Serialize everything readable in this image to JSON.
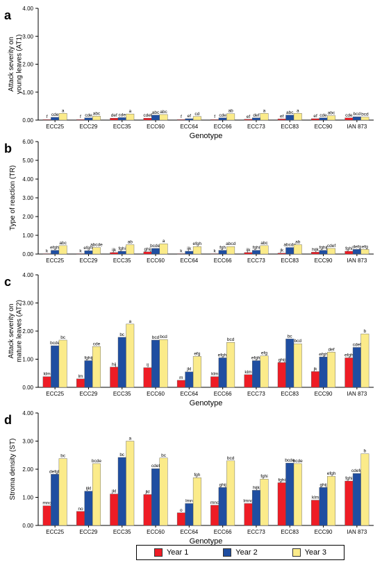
{
  "colors": {
    "year1": "#ee1c25",
    "year2": "#1f4ea1",
    "year3": "#fbeb8a"
  },
  "legend": {
    "items": [
      "Year 1",
      "Year 2",
      "Year 3"
    ]
  },
  "chart_data": [
    {
      "type": "bar",
      "panel_letter": "a",
      "ylabel": "Attack severity  on young leaves (AT1)",
      "xlabel": "Genotype",
      "ylim": [
        0,
        4
      ],
      "yticks": [
        "0.00",
        "1.00",
        "2.00",
        "3.00",
        "4.00"
      ],
      "categories": [
        "ECC25",
        "ECC29",
        "ECC35",
        "ECC60",
        "ECC64",
        "ECC66",
        "ECC73",
        "ECC83",
        "ECC90",
        "IAN 873"
      ],
      "series": [
        {
          "name": "Year 1",
          "values": [
            0.02,
            0.02,
            0.07,
            0.07,
            0.02,
            0.02,
            0.03,
            0.04,
            0.05,
            0.08
          ],
          "labels": [
            "f",
            "f",
            "def",
            "cdef",
            "f",
            "f",
            "ef",
            "ef",
            "ef",
            "cde"
          ]
        },
        {
          "name": "Year 2",
          "values": [
            0.1,
            0.08,
            0.09,
            0.18,
            0.05,
            0.08,
            0.08,
            0.18,
            0.08,
            0.12
          ],
          "labels": [
            "cde",
            "cde",
            "cde",
            "abc",
            "ef",
            "cde",
            "def",
            "abc",
            "cde",
            "bcd"
          ]
        },
        {
          "name": "Year 3",
          "values": [
            0.24,
            0.14,
            0.22,
            0.2,
            0.13,
            0.23,
            0.24,
            0.24,
            0.16,
            0.11
          ],
          "labels": [
            "a",
            "abc",
            "a",
            "abc",
            "cd",
            "ab",
            "a",
            "a",
            "abc",
            "bcd"
          ]
        }
      ]
    },
    {
      "type": "bar",
      "panel_letter": "b",
      "ylabel": "Type of reaction (TR)",
      "xlabel": "",
      "ylim": [
        0,
        6
      ],
      "yticks": [
        "0.00",
        "1.00",
        "2.00",
        "3.00",
        "4.00",
        "5.00",
        "6.00"
      ],
      "categories": [
        "ECC25",
        "ECC29",
        "ECC35",
        "ECC60",
        "ECC64",
        "ECC66",
        "ECC73",
        "ECC83",
        "ECC90",
        "IAN 873"
      ],
      "series": [
        {
          "name": "Year 1",
          "values": [
            0.02,
            0.02,
            0.08,
            0.12,
            0.02,
            0.02,
            0.08,
            0.05,
            0.1,
            0.15
          ],
          "labels": [
            "k",
            "k",
            "ijk",
            "ghij",
            "k",
            "k",
            "ijk",
            "jk",
            "hijk",
            "fghi"
          ]
        },
        {
          "name": "Year 2",
          "values": [
            0.2,
            0.18,
            0.15,
            0.3,
            0.15,
            0.2,
            0.2,
            0.35,
            0.2,
            0.25
          ],
          "labels": [
            "efghi",
            "efghi",
            "fghi",
            "bcdef",
            "ijk",
            "fgh",
            "fghi",
            "abcde",
            "fghij",
            "defg"
          ]
        },
        {
          "name": "Year 3",
          "values": [
            0.45,
            0.35,
            0.5,
            0.55,
            0.4,
            0.4,
            0.45,
            0.5,
            0.3,
            0.25
          ],
          "labels": [
            "abc",
            "abcde",
            "ab",
            "a",
            "efgh",
            "abcd",
            "abc",
            "ab",
            "cdef",
            "efg"
          ]
        }
      ]
    },
    {
      "type": "bar",
      "panel_letter": "c",
      "ylabel": "Attack severity on  mature leaves (AT2)",
      "xlabel": "Genotype",
      "ylim": [
        0,
        4
      ],
      "yticks": [
        "0.00",
        "1.00",
        "2.00",
        "3.00",
        "4.00"
      ],
      "categories": [
        "ECC25",
        "ECC29",
        "ECC35",
        "ECC60",
        "ECC64",
        "ECC66",
        "ECC73",
        "ECC83",
        "ECC90",
        "IAN 873"
      ],
      "series": [
        {
          "name": "Year 1",
          "values": [
            0.38,
            0.3,
            0.72,
            0.7,
            0.25,
            0.38,
            0.45,
            0.88,
            0.56,
            1.05
          ],
          "labels": [
            "klm",
            "lm",
            "hij",
            "ij",
            "m",
            "klm",
            "klm",
            "ghij",
            "jk",
            "efgh"
          ]
        },
        {
          "name": "Year 2",
          "values": [
            1.48,
            0.95,
            1.78,
            1.68,
            0.55,
            1.05,
            0.95,
            1.72,
            1.08,
            1.42
          ],
          "labels": [
            "bcde",
            "fghij",
            "bc",
            "bcd",
            "jkl",
            "efghi",
            "efghi",
            "bc",
            "efgh",
            "cdef"
          ]
        },
        {
          "name": "Year 3",
          "values": [
            1.68,
            1.45,
            2.25,
            1.7,
            1.1,
            1.6,
            1.12,
            1.55,
            1.25,
            1.9
          ],
          "labels": [
            "bc",
            "cde",
            "a",
            "bcd",
            "efg",
            "bcd",
            "efg",
            "bcd",
            "def",
            "b"
          ]
        }
      ]
    },
    {
      "type": "bar",
      "panel_letter": "d",
      "ylabel": "Stroma density (ST)",
      "xlabel": "Genotype",
      "ylim": [
        0,
        4
      ],
      "yticks": [
        "0.00",
        "1.00",
        "2.00",
        "3.00",
        "4.00"
      ],
      "categories": [
        "ECC25",
        "ECC29",
        "ECC35",
        "ECC60",
        "ECC64",
        "ECC66",
        "ECC73",
        "ECC83",
        "ECC90",
        "IAN 873"
      ],
      "series": [
        {
          "name": "Year 1",
          "values": [
            0.7,
            0.5,
            1.12,
            1.1,
            0.45,
            0.72,
            0.78,
            1.52,
            0.9,
            1.58
          ],
          "labels": [
            "mno",
            "no",
            "jkl",
            "jkl",
            "o",
            "mno",
            "lmno",
            "fghi",
            "klm",
            "fghi"
          ]
        },
        {
          "name": "Year 2",
          "values": [
            1.82,
            1.22,
            2.42,
            2.02,
            0.78,
            1.35,
            1.25,
            2.22,
            1.35,
            1.85
          ],
          "labels": [
            "defgh",
            "ijkl",
            "bc",
            "cdef",
            "lmn",
            "ghij",
            "hijk",
            "bcde",
            "ghij",
            "cdefg"
          ]
        },
        {
          "name": "Year 3",
          "values": [
            2.38,
            2.2,
            3.0,
            2.4,
            1.7,
            2.3,
            1.65,
            2.2,
            1.75,
            2.55
          ],
          "labels": [
            "bc",
            "bcde",
            "a",
            "bc",
            "fgh",
            "bcd",
            "fghi",
            "bcde",
            "efgh",
            "b"
          ]
        }
      ]
    }
  ]
}
